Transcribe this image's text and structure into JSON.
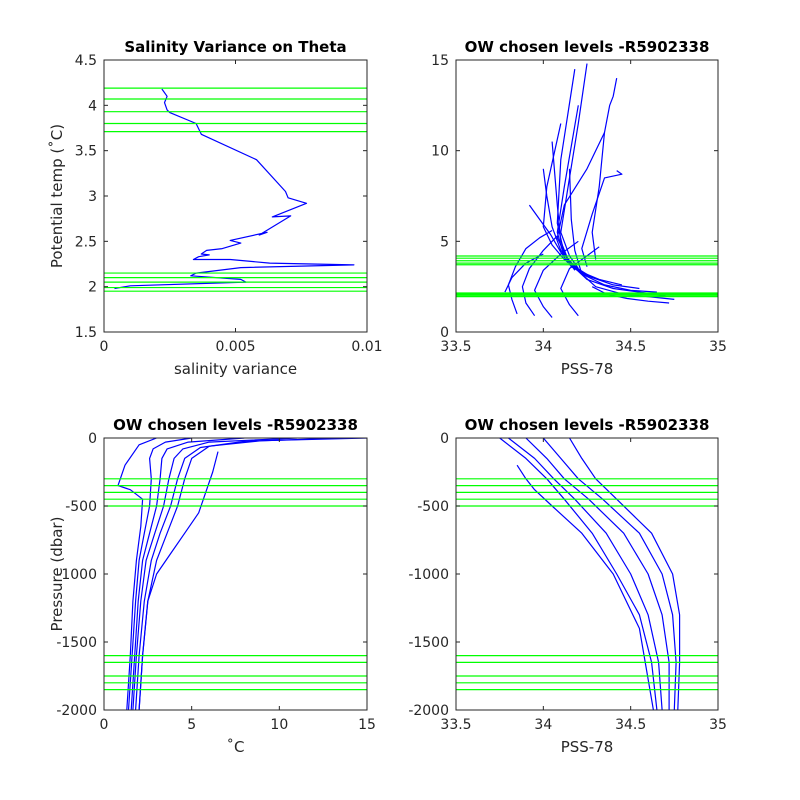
{
  "chart_data": [
    {
      "type": "line",
      "title": "Salinity Variance on Theta",
      "xlabel": "salinity variance",
      "ylabel": "Potential temp (˚C)",
      "xlim": [
        0,
        0.01
      ],
      "ylim": [
        1.5,
        4.5
      ],
      "xticks": [
        0,
        0.005,
        0.01
      ],
      "xtick_labels": [
        "0",
        "0.005",
        "0.01"
      ],
      "yticks": [
        1.5,
        2,
        2.5,
        3,
        3.5,
        4,
        4.5
      ],
      "ytick_labels": [
        "1.5",
        "2",
        "2.5",
        "3",
        "3.5",
        "4",
        "4.5"
      ],
      "grid": false,
      "series": [
        {
          "color": "#0000ff",
          "x": [
            0.0022,
            0.0024,
            0.0023,
            0.0024,
            0.0025,
            0.0035,
            0.0036,
            0.0037,
            0.0058,
            0.0069,
            0.007,
            0.0077,
            0.0064,
            0.0071,
            0.0059,
            0.0062,
            0.0048,
            0.0052,
            0.0045,
            0.0039,
            0.0037,
            0.004,
            0.0036,
            0.0034,
            0.0048,
            0.0063,
            0.0095,
            0.0052,
            0.0035,
            0.0033,
            0.0052,
            0.0054,
            0.001,
            0.0004
          ],
          "y": [
            4.18,
            4.1,
            4.03,
            3.95,
            3.92,
            3.8,
            3.74,
            3.68,
            3.4,
            3.05,
            2.98,
            2.92,
            2.77,
            2.78,
            2.57,
            2.6,
            2.51,
            2.48,
            2.42,
            2.4,
            2.36,
            2.35,
            2.33,
            2.3,
            2.3,
            2.26,
            2.24,
            2.21,
            2.15,
            2.12,
            2.08,
            2.05,
            2.01,
            1.98
          ]
        }
      ],
      "reference_lines": {
        "axis": "y",
        "color": "#00ff00",
        "values": [
          4.19,
          4.07,
          3.93,
          3.8,
          3.71,
          2.15,
          2.1,
          2.05,
          1.99,
          1.95
        ]
      }
    },
    {
      "type": "line",
      "title": "OW chosen levels -R5902338",
      "xlabel": "PSS-78",
      "ylabel": "",
      "xlim": [
        33.5,
        35
      ],
      "ylim": [
        0,
        15
      ],
      "xticks": [
        33.5,
        34,
        34.5,
        35
      ],
      "xtick_labels": [
        "33.5",
        "34",
        "34.5",
        "35"
      ],
      "yticks": [
        0,
        5,
        10,
        15
      ],
      "ytick_labels": [
        "0",
        "5",
        "10",
        "15"
      ],
      "grid": false,
      "series": [
        {
          "color": "#0000ff",
          "x": [
            34.75,
            34.6,
            34.45,
            34.3,
            34.22,
            34.18,
            34.16,
            34.15
          ],
          "y": [
            1.8,
            1.95,
            2.1,
            2.5,
            3.2,
            4.5,
            6.2,
            9.0
          ]
        },
        {
          "color": "#0000ff",
          "x": [
            34.7,
            34.55,
            34.4,
            34.25,
            34.15,
            34.1,
            34.08,
            34.05
          ],
          "y": [
            2.0,
            2.2,
            2.4,
            2.9,
            3.8,
            5.0,
            7.0,
            10.5
          ]
        },
        {
          "color": "#0000ff",
          "x": [
            34.65,
            34.5,
            34.35,
            34.22,
            34.12,
            34.08,
            34.12,
            34.2
          ],
          "y": [
            2.2,
            2.3,
            2.6,
            3.2,
            4.1,
            5.5,
            8.0,
            12.5
          ]
        },
        {
          "color": "#0000ff",
          "x": [
            34.55,
            34.4,
            34.28,
            34.18,
            34.1,
            34.05,
            34.02,
            34.0
          ],
          "y": [
            2.4,
            2.6,
            3.0,
            3.6,
            4.5,
            5.8,
            7.5,
            9.0
          ]
        },
        {
          "color": "#0000ff",
          "x": [
            34.45,
            34.32,
            34.22,
            34.14,
            34.08,
            34.12,
            34.25,
            34.35
          ],
          "y": [
            2.6,
            2.9,
            3.3,
            4.0,
            5.2,
            7.0,
            9.0,
            11.0
          ]
        },
        {
          "color": "#0000ff",
          "x": [
            34.35,
            34.25,
            34.16,
            34.1,
            34.04,
            33.98,
            33.92
          ],
          "y": [
            2.8,
            3.1,
            3.6,
            4.4,
            5.4,
            6.2,
            7.0
          ]
        },
        {
          "color": "#0000ff",
          "x": [
            34.28,
            34.2,
            34.12,
            34.05,
            34.0,
            34.02,
            34.1
          ],
          "y": [
            3.0,
            3.4,
            4.0,
            4.8,
            5.8,
            8.0,
            11.5
          ]
        },
        {
          "color": "#0000ff",
          "x": [
            34.2,
            34.15,
            34.1,
            34.15,
            34.2,
            34.25
          ],
          "y": [
            3.5,
            4.2,
            5.5,
            8.5,
            11.5,
            14.8
          ]
        },
        {
          "color": "#0000ff",
          "x": [
            34.18,
            34.12,
            34.08,
            34.1,
            34.14,
            34.18
          ],
          "y": [
            3.4,
            4.3,
            6.0,
            9.5,
            12.0,
            14.5
          ]
        },
        {
          "color": "#0000ff",
          "x": [
            34.25,
            34.22,
            34.28,
            34.35,
            34.45,
            34.42
          ],
          "y": [
            3.6,
            4.6,
            6.5,
            8.5,
            8.7,
            8.9
          ]
        },
        {
          "color": "#0000ff",
          "x": [
            34.3,
            34.28,
            34.32,
            34.35,
            34.38,
            34.4,
            34.42
          ],
          "y": [
            4.0,
            5.5,
            8.0,
            11.0,
            12.5,
            13.0,
            14.0
          ]
        },
        {
          "color": "#0000ff",
          "x": [
            33.85,
            33.82,
            33.8,
            33.84,
            33.9,
            33.98,
            34.05
          ],
          "y": [
            1.0,
            1.8,
            2.6,
            3.6,
            4.6,
            5.2,
            5.6
          ]
        },
        {
          "color": "#0000ff",
          "x": [
            33.95,
            33.9,
            33.88,
            33.92,
            34.0,
            34.08
          ],
          "y": [
            0.9,
            1.6,
            2.5,
            3.5,
            4.5,
            5.3
          ]
        },
        {
          "color": "#0000ff",
          "x": [
            34.05,
            34.0,
            33.95,
            34.0,
            34.1,
            34.2
          ],
          "y": [
            0.8,
            1.4,
            2.3,
            3.4,
            4.3,
            5.0
          ]
        },
        {
          "color": "#0000ff",
          "x": [
            34.2,
            34.15,
            34.1,
            34.15,
            34.25,
            34.32
          ],
          "y": [
            0.9,
            1.5,
            2.4,
            3.5,
            4.2,
            4.7
          ]
        },
        {
          "color": "#0000ff",
          "x": [
            34.72,
            34.6,
            34.48,
            34.36,
            34.28
          ],
          "y": [
            1.6,
            1.7,
            1.85,
            2.1,
            2.5
          ]
        },
        {
          "color": "#0000ff",
          "x": [
            33.78,
            33.82,
            33.9,
            34.0
          ],
          "y": [
            2.2,
            3.0,
            3.8,
            4.3
          ]
        }
      ],
      "reference_lines": {
        "axis": "y",
        "color": "#00ff00",
        "values": [
          4.19,
          4.07,
          3.93,
          3.8,
          3.71,
          2.15,
          2.1,
          2.05,
          1.99,
          1.95
        ]
      }
    },
    {
      "type": "line",
      "title": "OW chosen levels -R5902338",
      "xlabel": "˚C",
      "ylabel": "Pressure (dbar)",
      "xlim": [
        0,
        15
      ],
      "ylim": [
        -2000,
        0
      ],
      "xticks": [
        0,
        5,
        10,
        15
      ],
      "xtick_labels": [
        "0",
        "5",
        "10",
        "15"
      ],
      "yticks": [
        -2000,
        -1500,
        -1000,
        -500,
        0
      ],
      "ytick_labels": [
        "-2000",
        "-1500",
        "-1000",
        "-500",
        "0"
      ],
      "grid": false,
      "series": [
        {
          "color": "#0000ff",
          "x": [
            15.0,
            9.0,
            6.0,
            5.0,
            4.6,
            4.2,
            3.6,
            3.0,
            2.5,
            2.2,
            2.0
          ],
          "y": [
            0,
            -20,
            -60,
            -150,
            -300,
            -500,
            -700,
            -900,
            -1200,
            -1600,
            -2000
          ]
        },
        {
          "color": "#0000ff",
          "x": [
            13.5,
            8.0,
            5.5,
            4.6,
            4.2,
            3.8,
            3.2,
            2.7,
            2.3,
            2.0,
            1.8
          ],
          "y": [
            0,
            -25,
            -70,
            -150,
            -300,
            -500,
            -700,
            -900,
            -1200,
            -1600,
            -2000
          ]
        },
        {
          "color": "#0000ff",
          "x": [
            11.0,
            6.0,
            4.5,
            4.0,
            3.7,
            3.4,
            2.9,
            2.4,
            2.1,
            1.85,
            1.65
          ],
          "y": [
            0,
            -30,
            -80,
            -150,
            -300,
            -500,
            -700,
            -900,
            -1200,
            -1600,
            -2000
          ]
        },
        {
          "color": "#0000ff",
          "x": [
            8.0,
            4.8,
            3.6,
            3.3,
            3.2,
            3.0,
            2.6,
            2.2,
            1.95,
            1.75,
            1.55
          ],
          "y": [
            0,
            -30,
            -80,
            -150,
            -300,
            -500,
            -700,
            -900,
            -1200,
            -1600,
            -2000
          ]
        },
        {
          "color": "#0000ff",
          "x": [
            5.0,
            3.5,
            2.8,
            2.6,
            2.7,
            2.6,
            2.3,
            2.0,
            1.8,
            1.6,
            1.4
          ],
          "y": [
            0,
            -30,
            -80,
            -150,
            -300,
            -500,
            -700,
            -900,
            -1200,
            -1600,
            -2000
          ]
        },
        {
          "color": "#0000ff",
          "x": [
            3.0,
            2.0,
            1.2,
            0.8,
            1.5,
            2.2,
            2.1,
            1.85,
            1.65,
            1.5,
            1.3
          ],
          "y": [
            0,
            -50,
            -200,
            -350,
            -380,
            -450,
            -650,
            -900,
            -1200,
            -1600,
            -2000
          ]
        },
        {
          "color": "#0000ff",
          "x": [
            6.5,
            6.2,
            5.8,
            5.4,
            4.6,
            3.8,
            3.0,
            2.5,
            2.2,
            2.0
          ],
          "y": [
            -100,
            -250,
            -400,
            -550,
            -700,
            -850,
            -1000,
            -1200,
            -1600,
            -2000
          ]
        }
      ],
      "reference_lines": {
        "axis": "y",
        "color": "#00ff00",
        "values": [
          -300,
          -350,
          -400,
          -450,
          -500,
          -1600,
          -1650,
          -1750,
          -1800,
          -1850
        ]
      }
    },
    {
      "type": "line",
      "title": "OW chosen levels -R5902338",
      "xlabel": "PSS-78",
      "ylabel": "",
      "xlim": [
        33.5,
        35
      ],
      "ylim": [
        -2000,
        0
      ],
      "xticks": [
        33.5,
        34,
        34.5,
        35
      ],
      "xtick_labels": [
        "33.5",
        "34",
        "34.5",
        "35"
      ],
      "yticks": [
        -2000,
        -1500,
        -1000,
        -500,
        0
      ],
      "ytick_labels": [
        "-2000",
        "-1500",
        "-1000",
        "-500",
        "0"
      ],
      "grid": false,
      "series": [
        {
          "color": "#0000ff",
          "x": [
            33.75,
            33.9,
            34.02,
            34.12,
            34.28,
            34.42,
            34.55,
            34.62,
            34.65
          ],
          "y": [
            0,
            -150,
            -300,
            -450,
            -700,
            -1000,
            -1300,
            -1650,
            -2000
          ]
        },
        {
          "color": "#0000ff",
          "x": [
            33.8,
            33.95,
            34.06,
            34.18,
            34.36,
            34.5,
            34.6,
            34.66,
            34.68
          ],
          "y": [
            0,
            -150,
            -300,
            -450,
            -700,
            -1000,
            -1300,
            -1650,
            -2000
          ]
        },
        {
          "color": "#0000ff",
          "x": [
            33.9,
            34.02,
            34.12,
            34.26,
            34.46,
            34.6,
            34.68,
            34.72,
            34.72
          ],
          "y": [
            0,
            -150,
            -300,
            -450,
            -700,
            -1000,
            -1300,
            -1650,
            -2000
          ]
        },
        {
          "color": "#0000ff",
          "x": [
            34.0,
            34.1,
            34.2,
            34.34,
            34.55,
            34.68,
            34.74,
            34.76,
            34.75
          ],
          "y": [
            0,
            -150,
            -300,
            -450,
            -700,
            -1000,
            -1300,
            -1650,
            -2000
          ]
        },
        {
          "color": "#0000ff",
          "x": [
            34.15,
            34.22,
            34.3,
            34.42,
            34.62,
            34.74,
            34.78,
            34.78,
            34.77
          ],
          "y": [
            0,
            -150,
            -300,
            -450,
            -700,
            -1000,
            -1300,
            -1650,
            -2000
          ]
        },
        {
          "color": "#0000ff",
          "x": [
            33.85,
            33.9,
            33.95,
            34.05,
            34.22,
            34.4,
            34.55,
            34.63
          ],
          "y": [
            -200,
            -300,
            -380,
            -500,
            -700,
            -1000,
            -1400,
            -2000
          ]
        }
      ],
      "reference_lines": {
        "axis": "y",
        "color": "#00ff00",
        "values": [
          -300,
          -350,
          -400,
          -450,
          -500,
          -1600,
          -1650,
          -1750,
          -1800,
          -1850
        ]
      }
    }
  ]
}
